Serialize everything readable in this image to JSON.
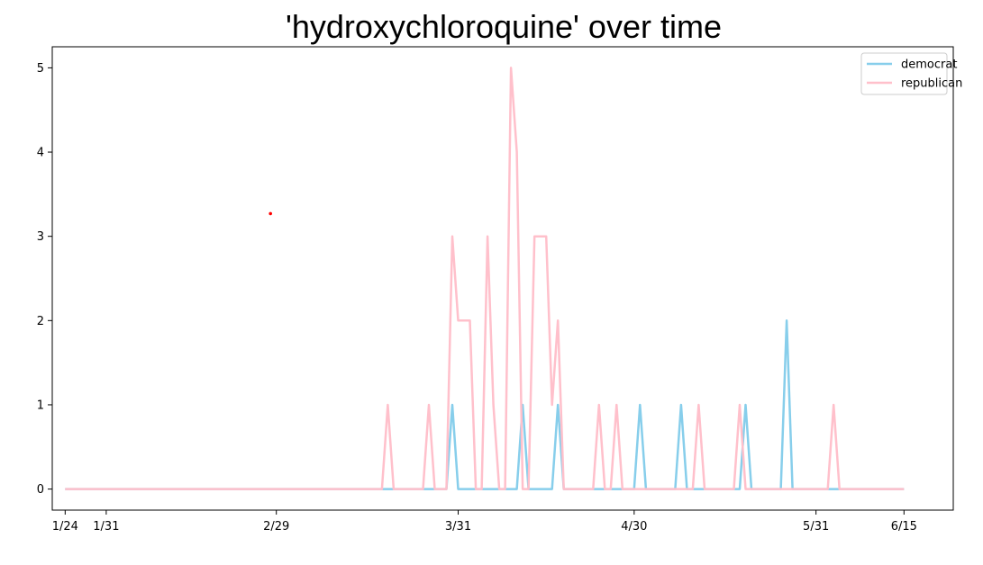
{
  "chart_data": {
    "type": "line",
    "title": "'hydroxychloroquine' over time",
    "xlabel": "",
    "ylabel": "",
    "x_start": "1/24",
    "x_ticks": [
      {
        "day": 0,
        "label": "1/24"
      },
      {
        "day": 7,
        "label": "1/31"
      },
      {
        "day": 36,
        "label": "2/29"
      },
      {
        "day": 67,
        "label": "3/31"
      },
      {
        "day": 97,
        "label": "4/30"
      },
      {
        "day": 128,
        "label": "5/31"
      },
      {
        "day": 143,
        "label": "6/15"
      }
    ],
    "y_ticks": [
      0,
      1,
      2,
      3,
      4,
      5
    ],
    "ylim": [
      -0.25,
      5.25
    ],
    "xlim": [
      -2.2,
      151.4
    ],
    "legend_position": "top-right",
    "grid": false,
    "series": [
      {
        "name": "democrat",
        "color": "#87ceeb",
        "points": [
          [
            0,
            0
          ],
          [
            65,
            0
          ],
          [
            66,
            1
          ],
          [
            67,
            0
          ],
          [
            77,
            0
          ],
          [
            78,
            1
          ],
          [
            79,
            0
          ],
          [
            83,
            0
          ],
          [
            84,
            1
          ],
          [
            85,
            0
          ],
          [
            97,
            0
          ],
          [
            98,
            1
          ],
          [
            99,
            0
          ],
          [
            104,
            0
          ],
          [
            105,
            1
          ],
          [
            106,
            0
          ],
          [
            115,
            0
          ],
          [
            116,
            1
          ],
          [
            117,
            0
          ],
          [
            122,
            0
          ],
          [
            123,
            2
          ],
          [
            124,
            0
          ],
          [
            143,
            0
          ]
        ]
      },
      {
        "name": "republican",
        "color": "#ffc0cb",
        "points": [
          [
            0,
            0
          ],
          [
            54,
            0
          ],
          [
            55,
            1
          ],
          [
            56,
            0
          ],
          [
            61,
            0
          ],
          [
            62,
            1
          ],
          [
            63,
            0
          ],
          [
            65,
            0
          ],
          [
            66,
            3
          ],
          [
            67,
            2
          ],
          [
            69,
            2
          ],
          [
            70,
            0
          ],
          [
            71,
            0
          ],
          [
            72,
            3
          ],
          [
            73,
            1
          ],
          [
            74,
            0
          ],
          [
            75,
            0
          ],
          [
            76,
            5
          ],
          [
            77,
            4
          ],
          [
            78,
            0
          ],
          [
            79,
            0
          ],
          [
            80,
            3
          ],
          [
            82,
            3
          ],
          [
            83,
            1
          ],
          [
            84,
            2
          ],
          [
            85,
            0
          ],
          [
            90,
            0
          ],
          [
            91,
            1
          ],
          [
            92,
            0
          ],
          [
            93,
            0
          ],
          [
            94,
            1
          ],
          [
            95,
            0
          ],
          [
            107,
            0
          ],
          [
            108,
            1
          ],
          [
            109,
            0
          ],
          [
            114,
            0
          ],
          [
            115,
            1
          ],
          [
            116,
            0
          ],
          [
            130,
            0
          ],
          [
            131,
            1
          ],
          [
            132,
            0
          ],
          [
            143,
            0
          ]
        ]
      }
    ],
    "annotations": [
      {
        "type": "marker",
        "x": 35,
        "y": 3.27,
        "color": "#ff0000"
      }
    ]
  }
}
